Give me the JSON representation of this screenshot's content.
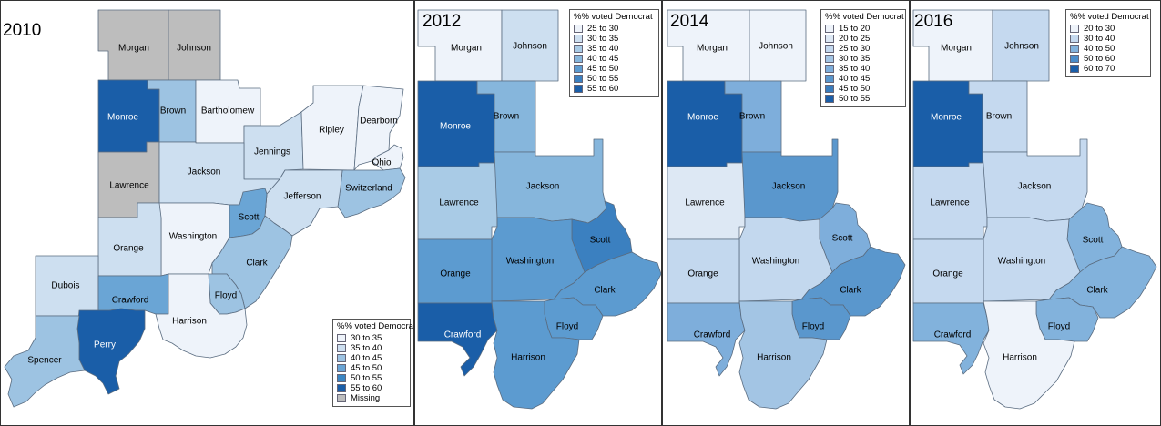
{
  "legend_title": "%% voted Democrat",
  "panels": [
    {
      "year": "2010",
      "legend": [
        {
          "label": "30 to 35",
          "color": "#eef3fa"
        },
        {
          "label": "35 to 40",
          "color": "#cddff0"
        },
        {
          "label": "40 to 45",
          "color": "#9dc3e2"
        },
        {
          "label": "45 to 50",
          "color": "#6aa5d5"
        },
        {
          "label": "50 to 55",
          "color": "#3b86c3"
        },
        {
          "label": "55 to 60",
          "color": "#1a5ea8"
        },
        {
          "label": "Missing",
          "color": "#bdbdbd"
        }
      ],
      "counties": {
        "morgan": "Morgan",
        "johnson": "Johnson",
        "monroe": "Monroe",
        "brown": "Brown",
        "bartholomew": "Bartholomew",
        "jennings": "Jennings",
        "ripley": "Ripley",
        "dearborn": "Dearborn",
        "ohio": "Ohio",
        "switzerland": "Switzerland",
        "lawrence": "Lawrence",
        "jackson": "Jackson",
        "jefferson": "Jefferson",
        "scott": "Scott",
        "washington": "Washington",
        "orange": "Orange",
        "clark": "Clark",
        "dubois": "Dubois",
        "crawford": "Crawford",
        "floyd": "Floyd",
        "harrison": "Harrison",
        "perry": "Perry",
        "spencer": "Spencer"
      }
    },
    {
      "year": "2012",
      "legend": [
        {
          "label": "25 to 30",
          "color": "#eef3fa"
        },
        {
          "label": "30 to 35",
          "color": "#cddff0"
        },
        {
          "label": "35 to 40",
          "color": "#a9cbe6"
        },
        {
          "label": "40 to 45",
          "color": "#86b6dc"
        },
        {
          "label": "45 to 50",
          "color": "#5c9bd0"
        },
        {
          "label": "50 to 55",
          "color": "#3b80c0"
        },
        {
          "label": "55 to 60",
          "color": "#1a5ea8"
        }
      ],
      "counties": {
        "morgan": "Morgan",
        "johnson": "Johnson",
        "monroe": "Monroe",
        "brown": "Brown",
        "lawrence": "Lawrence",
        "jackson": "Jackson",
        "orange": "Orange",
        "washington": "Washington",
        "scott": "Scott",
        "clark": "Clark",
        "crawford": "Crawford",
        "floyd": "Floyd",
        "harrison": "Harrison"
      }
    },
    {
      "year": "2014",
      "legend": [
        {
          "label": "15 to 20",
          "color": "#eef3fa"
        },
        {
          "label": "20 to 25",
          "color": "#dde8f4"
        },
        {
          "label": "25 to 30",
          "color": "#c3d8ee"
        },
        {
          "label": "30 to 35",
          "color": "#a3c5e4"
        },
        {
          "label": "35 to 40",
          "color": "#7eaedb"
        },
        {
          "label": "40 to 45",
          "color": "#5a97cd"
        },
        {
          "label": "45 to 50",
          "color": "#3a7dbd"
        },
        {
          "label": "50 to 55",
          "color": "#1a5ea8"
        }
      ],
      "counties": {
        "morgan": "Morgan",
        "johnson": "Johnson",
        "monroe": "Monroe",
        "brown": "Brown",
        "lawrence": "Lawrence",
        "jackson": "Jackson",
        "orange": "Orange",
        "washington": "Washington",
        "scott": "Scott",
        "clark": "Clark",
        "crawford": "Crawford",
        "floyd": "Floyd",
        "harrison": "Harrison"
      }
    },
    {
      "year": "2016",
      "legend": [
        {
          "label": "20 to 30",
          "color": "#eef3fa"
        },
        {
          "label": "30 to 40",
          "color": "#c5d9ef"
        },
        {
          "label": "40 to 50",
          "color": "#82b2dc"
        },
        {
          "label": "50 to 60",
          "color": "#4a8cc9"
        },
        {
          "label": "60 to 70",
          "color": "#1a5ea8"
        }
      ],
      "counties": {
        "morgan": "Morgan",
        "johnson": "Johnson",
        "monroe": "Monroe",
        "brown": "Brown",
        "lawrence": "Lawrence",
        "jackson": "Jackson",
        "orange": "Orange",
        "washington": "Washington",
        "scott": "Scott",
        "clark": "Clark",
        "crawford": "Crawford",
        "floyd": "Floyd",
        "harrison": "Harrison"
      }
    }
  ]
}
